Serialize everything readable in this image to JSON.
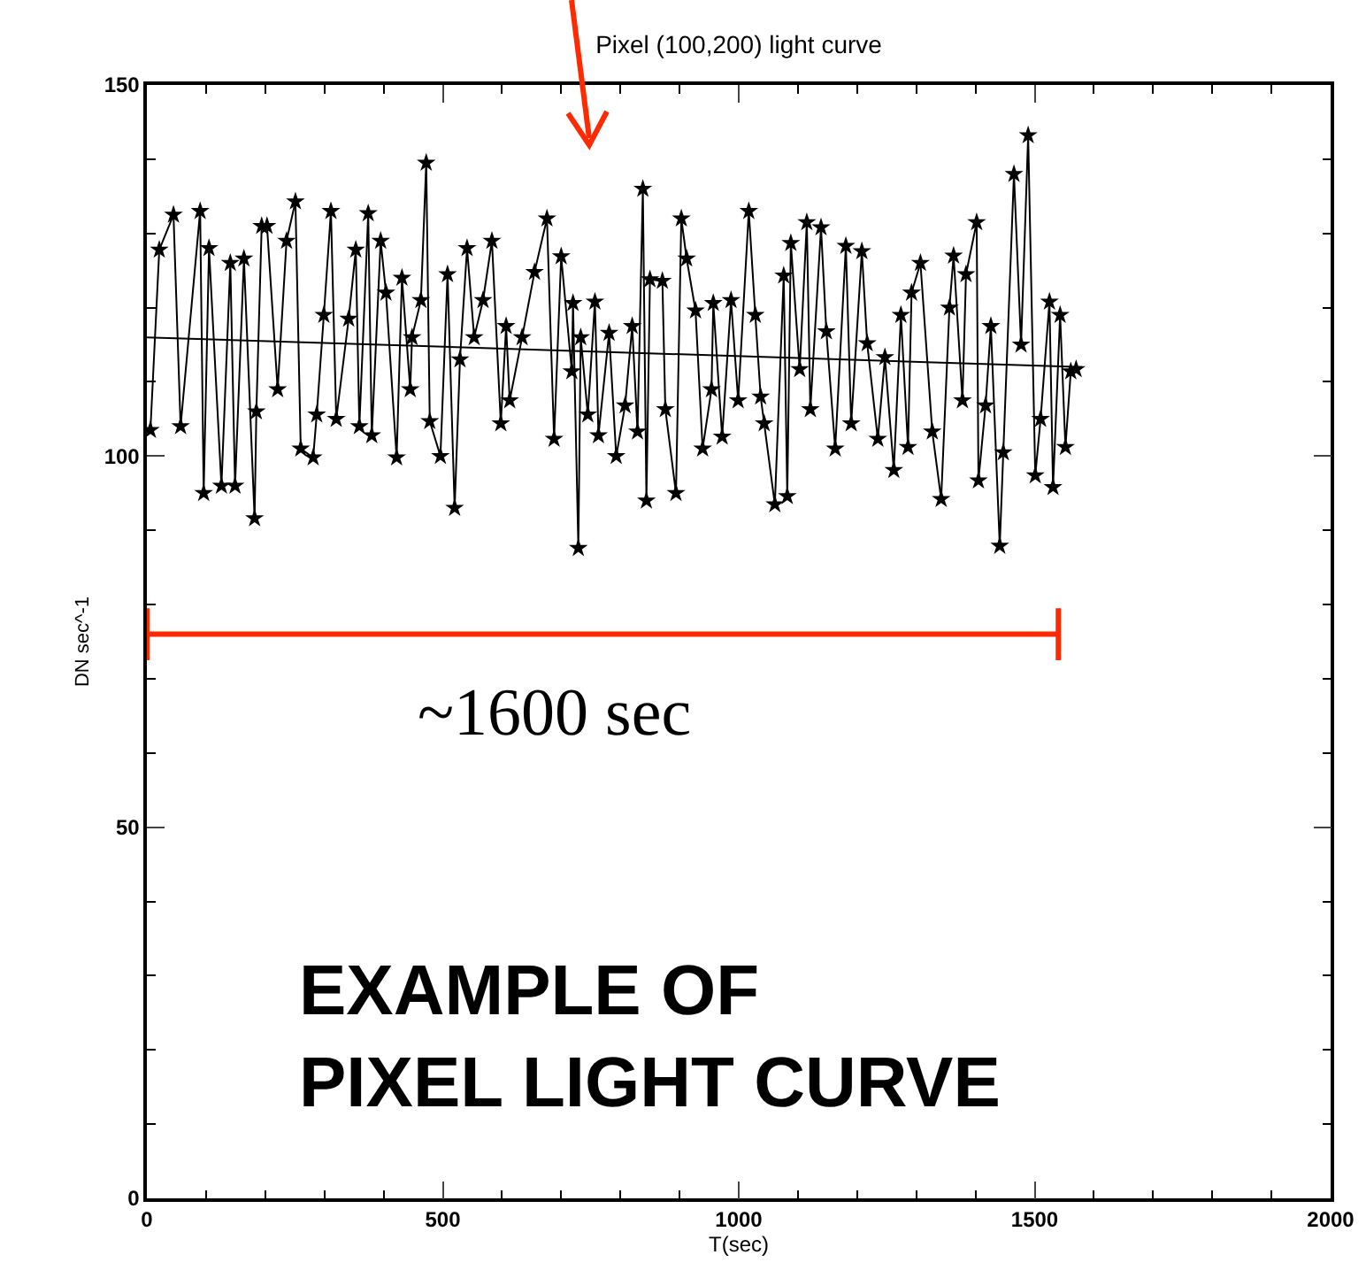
{
  "chart_data": {
    "type": "line",
    "title": "Pixel (100,200) light curve",
    "xlabel": "T(sec)",
    "ylabel": "DN sec^-1",
    "xlim": [
      0,
      2000
    ],
    "xticks": [
      0,
      500,
      1000,
      1500,
      2000
    ],
    "ylim": [
      0,
      150
    ],
    "yticks": [
      0,
      50,
      100,
      150
    ],
    "grid": false,
    "marker": "star",
    "line_style": "solid",
    "annotations": [
      "EXAMPLE OF\nPIXEL LIGHT CURVE",
      "~1600 sec"
    ],
    "series": [
      {
        "color": "#000000",
        "x": [
          6,
          21,
          45,
          57,
          90,
          96,
          105,
          126,
          141,
          149,
          164,
          182,
          185,
          194,
          203,
          221,
          236,
          251,
          260,
          281,
          287,
          299,
          311,
          320,
          341,
          353,
          359,
          374,
          380,
          395,
          404,
          422,
          431,
          445,
          448,
          463,
          472,
          478,
          496,
          508,
          520,
          529,
          541,
          553,
          568,
          583,
          598,
          607,
          613,
          634,
          655,
          676,
          688,
          700,
          718,
          720,
          729,
          733,
          745,
          757,
          763,
          781,
          793,
          808,
          820,
          829,
          838,
          844,
          850,
          871,
          876,
          894,
          903,
          912,
          927,
          939,
          954,
          957,
          972,
          987,
          999,
          1017,
          1028,
          1037,
          1043,
          1061,
          1076,
          1082,
          1088,
          1103,
          1115,
          1121,
          1139,
          1148,
          1163,
          1181,
          1190,
          1208,
          1217,
          1235,
          1247,
          1262,
          1274,
          1286,
          1292,
          1307,
          1327,
          1342,
          1356,
          1363,
          1378,
          1384,
          1402,
          1405,
          1417,
          1426,
          1441,
          1447,
          1465,
          1477,
          1489,
          1501,
          1510,
          1525,
          1531,
          1543,
          1552,
          1561,
          1570
        ],
        "values": [
          103.5,
          127.8,
          132.5,
          104,
          133,
          95,
          128,
          96,
          126,
          96,
          126.6,
          91.6,
          106,
          131,
          131,
          109,
          129,
          134.3,
          101,
          99.8,
          105.6,
          119,
          133,
          105,
          118.5,
          127.8,
          104,
          132.7,
          102.8,
          129,
          122,
          99.8,
          124,
          109,
          116,
          121,
          139.5,
          104.7,
          100,
          124.5,
          93,
          113,
          128,
          116,
          121,
          129,
          104.4,
          117.5,
          107.5,
          116,
          124.8,
          132,
          102.3,
          126.9,
          111.4,
          120.6,
          87.6,
          116,
          105.6,
          120.8,
          102.8,
          116.6,
          100,
          106.8,
          117.5,
          103.3,
          136,
          94,
          123.8,
          123.6,
          106.3,
          95,
          132,
          126.6,
          119.6,
          101,
          109,
          120.6,
          102.6,
          121,
          107.5,
          133,
          119,
          108,
          104.4,
          93.5,
          124.3,
          94.6,
          128.7,
          111.7,
          131.5,
          106.3,
          130.8,
          116.8,
          101,
          128.3,
          104.4,
          127.6,
          115.2,
          102.3,
          113.3,
          98.1,
          119,
          101.2,
          122,
          126,
          103.3,
          94.2,
          120,
          127,
          107.5,
          124.5,
          131.5,
          96.7,
          106.8,
          117.5,
          87.9,
          100.5,
          138,
          115,
          143.2,
          97.4,
          105,
          120.8,
          95.8,
          119,
          101.2,
          111.4,
          111.7
        ]
      },
      {
        "type": "line",
        "marker": "none",
        "color": "#000000",
        "x": [
          0,
          1580
        ],
        "values": [
          116,
          112
        ]
      },
      {
        "type": "line",
        "marker": "none",
        "color": "#ff2a00",
        "x": [
          0,
          1540
        ],
        "values": [
          76,
          76
        ],
        "errors": [
          3.5,
          3.5
        ]
      }
    ]
  }
}
